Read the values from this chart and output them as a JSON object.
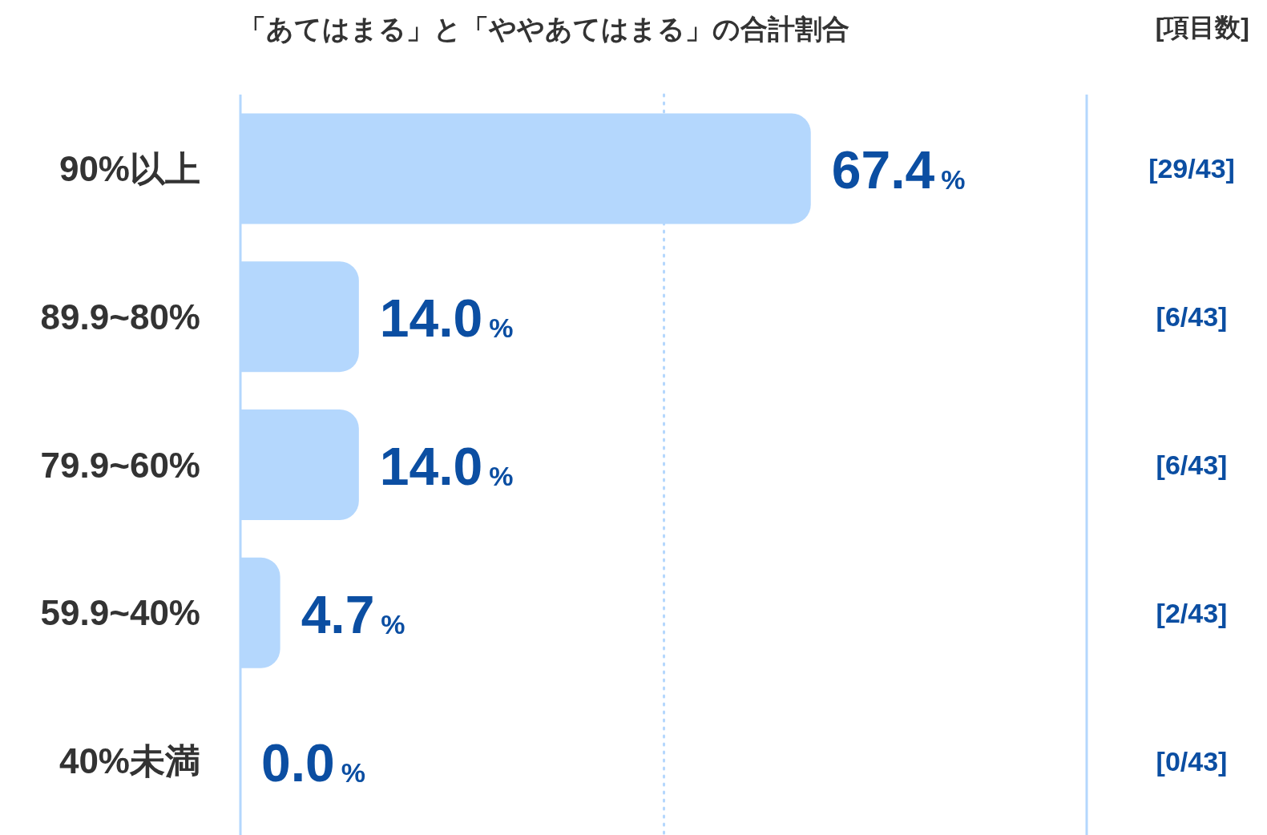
{
  "chart_data": {
    "type": "bar",
    "orientation": "horizontal",
    "title": "「あてはまる」と「ややあてはまる」の合計割合",
    "categories": [
      "90%以上",
      "89.9~80%",
      "79.9~60%",
      "59.9~40%",
      "40%未満"
    ],
    "values": [
      67.4,
      14.0,
      14.0,
      4.7,
      0.0
    ],
    "value_labels": [
      "67.4%",
      "14.0%",
      "14.0%",
      "4.7%",
      "0.0%"
    ],
    "color": "#b4d7fd",
    "xlim": [
      0,
      100
    ],
    "tick_labels": "y",
    "ref_lines": [
      {
        "axis": "x",
        "value": 50,
        "color": "#b4d7fd",
        "line_style": "dotted"
      }
    ],
    "annotations": [
      "[項目数]",
      "[29/43]",
      "[6/43]",
      "[6/43]",
      "[2/43]",
      "[0/43]"
    ]
  }
}
